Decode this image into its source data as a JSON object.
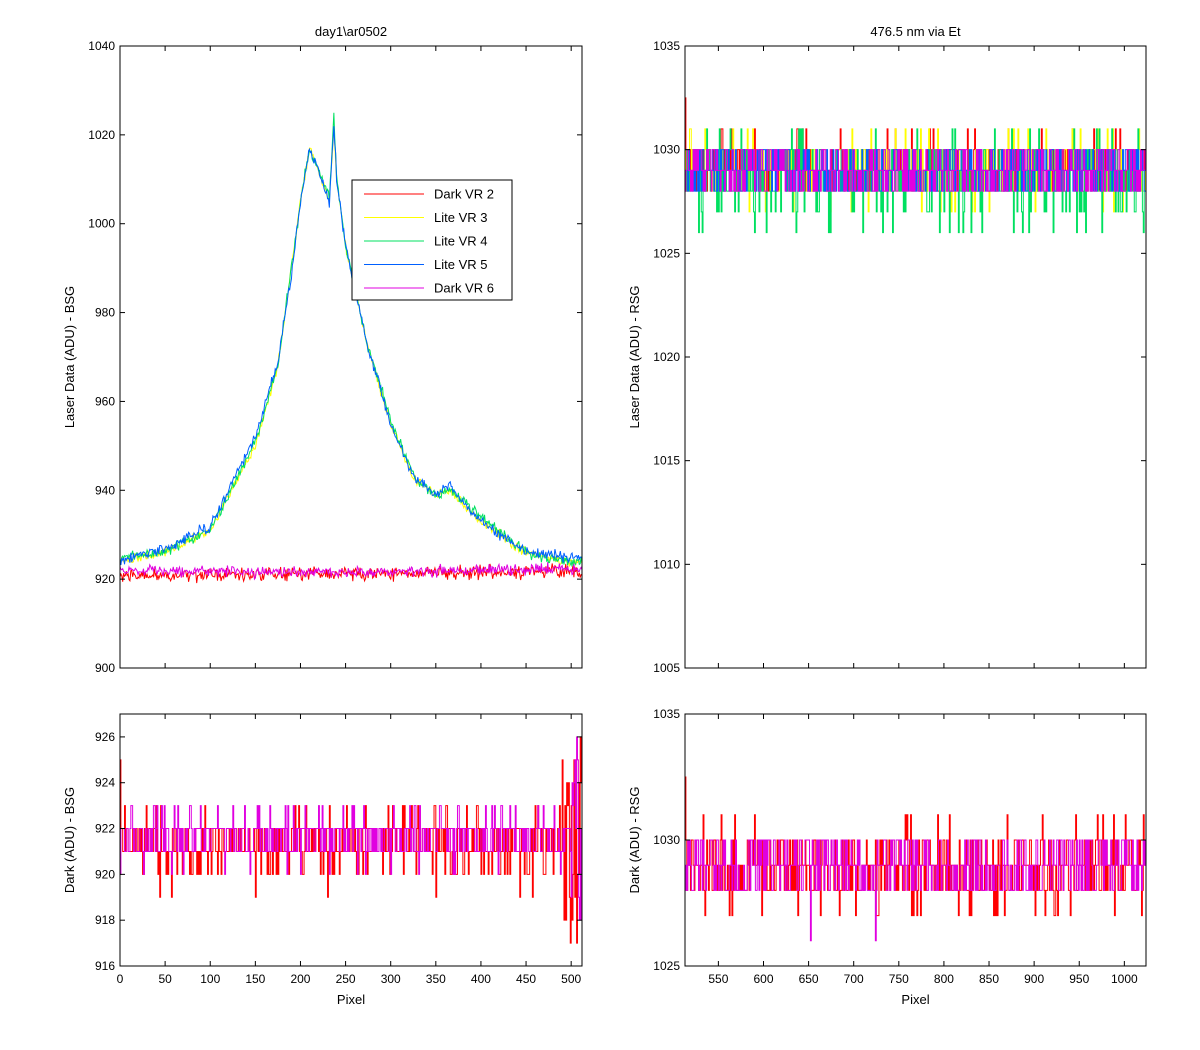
{
  "figure": {
    "background": "#ffffff"
  },
  "chart_data": [
    {
      "id": "bsg_laser",
      "type": "line",
      "title": "day1\\ar0502",
      "xlabel": "",
      "ylabel": "Laser Data (ADU) - BSG",
      "xlim": [
        0,
        512
      ],
      "ylim": [
        900,
        1040
      ],
      "xticks": [
        0,
        50,
        100,
        150,
        200,
        250,
        300,
        350,
        400,
        450,
        500
      ],
      "yticks": [
        900,
        920,
        940,
        960,
        980,
        1000,
        1020,
        1040
      ],
      "show_xtick_labels": false,
      "grid": false,
      "legend": {
        "placement": "upper-center",
        "entries": [
          "Dark VR 2",
          "Lite VR 3",
          "Lite VR 4",
          "Lite VR 5",
          "Dark VR 6"
        ]
      },
      "series": [
        {
          "name": "Dark VR 2",
          "color": "#ff0000",
          "kind": "noise",
          "x_range": [
            0,
            512
          ],
          "baseline_points": [
            [
              0,
              920.8
            ],
            [
              250,
              921.2
            ],
            [
              420,
              921.6
            ],
            [
              500,
              922.0
            ],
            [
              512,
              921.0
            ]
          ],
          "noise_amplitude": 1.2,
          "seed": 2
        },
        {
          "name": "Lite VR 3",
          "color": "#ffff00",
          "kind": "peak",
          "x_range": [
            0,
            512
          ],
          "baseline_points": [
            [
              0,
              924
            ],
            [
              50,
              926
            ],
            [
              100,
              931
            ],
            [
              150,
              950
            ],
            [
              175,
              968
            ],
            [
              200,
              1005
            ],
            [
              210,
              1017
            ],
            [
              220,
              1012
            ],
            [
              232,
              1005
            ],
            [
              237,
              1021
            ],
            [
              240,
              1010
            ],
            [
              250,
              995
            ],
            [
              275,
              972
            ],
            [
              300,
              955
            ],
            [
              325,
              943
            ],
            [
              350,
              939
            ],
            [
              365,
              940
            ],
            [
              400,
              933
            ],
            [
              450,
              926
            ],
            [
              500,
              924
            ],
            [
              512,
              924
            ]
          ],
          "noise_amplitude": 0.8,
          "seed": 3
        },
        {
          "name": "Lite VR 4",
          "color": "#00e060",
          "kind": "peak",
          "x_range": [
            0,
            512
          ],
          "baseline_points": [
            [
              0,
              925
            ],
            [
              50,
              926
            ],
            [
              100,
              931
            ],
            [
              150,
              951
            ],
            [
              175,
              968
            ],
            [
              200,
              1005
            ],
            [
              210,
              1017
            ],
            [
              220,
              1012
            ],
            [
              232,
              1006
            ],
            [
              237,
              1024
            ],
            [
              240,
              1011
            ],
            [
              250,
              995
            ],
            [
              275,
              972
            ],
            [
              300,
              956
            ],
            [
              325,
              943
            ],
            [
              350,
              939
            ],
            [
              365,
              940
            ],
            [
              400,
              934
            ],
            [
              450,
              926
            ],
            [
              500,
              924
            ],
            [
              512,
              924
            ]
          ],
          "noise_amplitude": 0.9,
          "seed": 4
        },
        {
          "name": "Lite VR 5",
          "color": "#0060ff",
          "kind": "peak",
          "x_range": [
            0,
            512
          ],
          "baseline_points": [
            [
              0,
              924
            ],
            [
              50,
              927
            ],
            [
              100,
              932
            ],
            [
              150,
              952
            ],
            [
              175,
              969
            ],
            [
              190,
              988
            ],
            [
              200,
              1005
            ],
            [
              210,
              1017
            ],
            [
              220,
              1012
            ],
            [
              232,
              1005
            ],
            [
              237,
              1023
            ],
            [
              240,
              1010
            ],
            [
              250,
              995
            ],
            [
              275,
              972
            ],
            [
              300,
              955
            ],
            [
              325,
              943
            ],
            [
              350,
              939
            ],
            [
              365,
              941
            ],
            [
              400,
              933
            ],
            [
              450,
              926
            ],
            [
              500,
              925
            ],
            [
              512,
              925
            ]
          ],
          "noise_amplitude": 0.9,
          "seed": 5
        },
        {
          "name": "Dark VR 6",
          "color": "#e000e0",
          "kind": "noise",
          "x_range": [
            0,
            512
          ],
          "baseline_points": [
            [
              0,
              921.8
            ],
            [
              250,
              921.6
            ],
            [
              420,
              922.0
            ],
            [
              500,
              922.3
            ],
            [
              512,
              922.0
            ]
          ],
          "noise_amplitude": 0.9,
          "seed": 6
        }
      ]
    },
    {
      "id": "rsg_laser",
      "type": "line",
      "title": "476.5 nm via Et",
      "xlabel": "",
      "ylabel": "Laser Data (ADU) - RSG",
      "xlim": [
        513,
        1024
      ],
      "ylim": [
        1005,
        1035
      ],
      "xticks": [
        550,
        600,
        650,
        700,
        750,
        800,
        850,
        900,
        950,
        1000
      ],
      "yticks": [
        1005,
        1010,
        1015,
        1020,
        1025,
        1030,
        1035
      ],
      "show_xtick_labels": false,
      "grid": false,
      "series": [
        {
          "name": "Dark VR 2",
          "color": "#ff0000",
          "kind": "digital",
          "x_range": [
            513,
            1024
          ],
          "levels": [
            1028,
            1029,
            1030,
            1031
          ],
          "weights": [
            0.3,
            0.35,
            0.3,
            0.05
          ],
          "start_spike": 1032.5,
          "seed": 12
        },
        {
          "name": "Lite VR 3",
          "color": "#ffff00",
          "kind": "digital",
          "x_range": [
            513,
            1024
          ],
          "levels": [
            1027,
            1028,
            1029,
            1030,
            1031
          ],
          "weights": [
            0.05,
            0.3,
            0.3,
            0.3,
            0.05
          ],
          "seed": 13
        },
        {
          "name": "Lite VR 4",
          "color": "#00e060",
          "kind": "digital",
          "x_range": [
            513,
            1024
          ],
          "levels": [
            1026,
            1027,
            1028,
            1029,
            1030,
            1031
          ],
          "weights": [
            0.03,
            0.12,
            0.3,
            0.3,
            0.2,
            0.05
          ],
          "seed": 14
        },
        {
          "name": "Lite VR 5",
          "color": "#0060ff",
          "kind": "digital",
          "x_range": [
            513,
            1024
          ],
          "levels": [
            1028,
            1029,
            1030
          ],
          "weights": [
            0.3,
            0.4,
            0.3
          ],
          "seed": 15
        },
        {
          "name": "Dark VR 6",
          "color": "#e000e0",
          "kind": "digital",
          "x_range": [
            513,
            1024
          ],
          "levels": [
            1028,
            1029,
            1030
          ],
          "weights": [
            0.3,
            0.4,
            0.3
          ],
          "seed": 16
        }
      ]
    },
    {
      "id": "bsg_dark",
      "type": "line",
      "title": "",
      "xlabel": "Pixel",
      "ylabel": "Dark (ADU) - BSG",
      "xlim": [
        0,
        512
      ],
      "ylim": [
        916,
        927
      ],
      "xticks": [
        0,
        50,
        100,
        150,
        200,
        250,
        300,
        350,
        400,
        450,
        500
      ],
      "yticks": [
        916,
        918,
        920,
        922,
        924,
        926
      ],
      "show_xtick_labels": true,
      "grid": false,
      "series": [
        {
          "name": "Dark VR 2",
          "color": "#ff0000",
          "kind": "digital",
          "x_range": [
            0,
            512
          ],
          "levels": [
            919,
            920,
            921,
            922,
            923
          ],
          "weights": [
            0.02,
            0.15,
            0.45,
            0.33,
            0.05
          ],
          "start_spike": 925,
          "end_burst": {
            "from": 490,
            "levels": [
              917,
              918,
              919,
              920,
              921,
              922,
              923,
              924,
              925,
              926
            ]
          },
          "seed": 22
        },
        {
          "name": "Dark VR 6",
          "color": "#e000e0",
          "kind": "digital",
          "x_range": [
            0,
            512
          ],
          "levels": [
            920,
            921,
            922,
            923
          ],
          "weights": [
            0.03,
            0.35,
            0.52,
            0.1
          ],
          "end_burst": {
            "from": 500,
            "levels": [
              918,
              919,
              920,
              921,
              922,
              923,
              924,
              925,
              926
            ]
          },
          "seed": 26
        }
      ]
    },
    {
      "id": "rsg_dark",
      "type": "line",
      "title": "",
      "xlabel": "Pixel",
      "ylabel": "Dark (ADU) - RSG",
      "xlim": [
        513,
        1024
      ],
      "ylim": [
        1025,
        1035
      ],
      "xticks": [
        550,
        600,
        650,
        700,
        750,
        800,
        850,
        900,
        950,
        1000
      ],
      "yticks": [
        1025,
        1030,
        1035
      ],
      "show_xtick_labels": true,
      "grid": false,
      "series": [
        {
          "name": "Dark VR 2",
          "color": "#ff0000",
          "kind": "digital",
          "x_range": [
            513,
            1024
          ],
          "levels": [
            1027,
            1028,
            1029,
            1030,
            1031
          ],
          "weights": [
            0.06,
            0.35,
            0.3,
            0.25,
            0.04
          ],
          "start_spike": 1032.5,
          "seed": 32
        },
        {
          "name": "Dark VR 6",
          "color": "#e000e0",
          "kind": "digital",
          "x_range": [
            513,
            1024
          ],
          "levels": [
            1026,
            1028,
            1029,
            1030
          ],
          "weights": [
            0.01,
            0.3,
            0.4,
            0.29
          ],
          "seed": 36
        }
      ]
    }
  ]
}
